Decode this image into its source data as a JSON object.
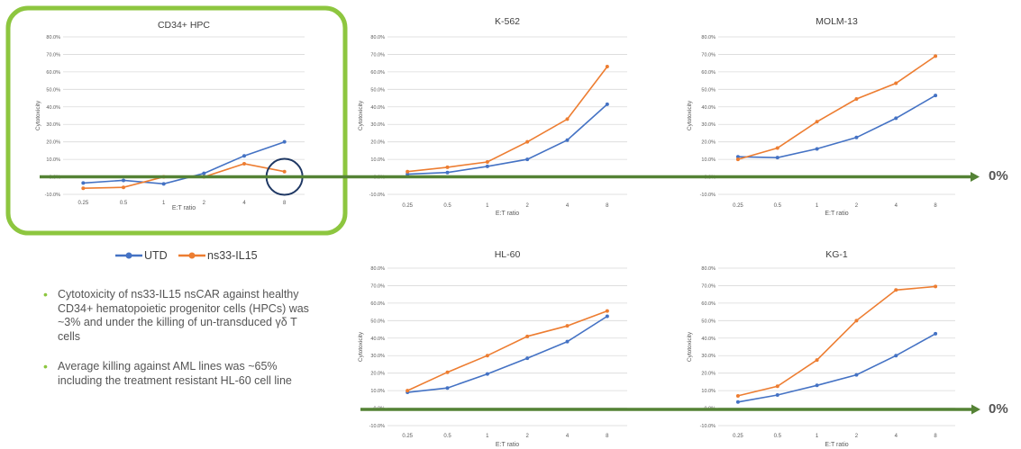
{
  "colors": {
    "utd": "#4472c4",
    "ns33": "#ed7d31",
    "highlight": "#8dc63f",
    "arrow": "#548235",
    "circle": "#1f3864",
    "grid": "#d9d9d9",
    "text": "#595959"
  },
  "legend": {
    "utd": "UTD",
    "ns33": "ns33-IL15"
  },
  "bullets": [
    "Cytotoxicity of ns33-IL15 nsCAR against healthy CD34+ hematopoietic progenitor cells (HPCs) was ~3% and under the killing of un-transduced γδ T cells",
    "Average killing against AML lines was ~65% including the treatment resistant HL-60 cell line"
  ],
  "zero_labels": [
    "0%",
    "0%"
  ],
  "chart_data": [
    {
      "type": "line",
      "title": "CD34+ HPC",
      "xlabel": "E:T ratio",
      "ylabel": "Cytotoxicity",
      "categories": [
        "0.25",
        "0.5",
        "1",
        "2",
        "4",
        "8"
      ],
      "ylim": [
        -10,
        80
      ],
      "yticks": [
        "80.0%",
        "70.0%",
        "60.0%",
        "50.0%",
        "40.0%",
        "30.0%",
        "20.0%",
        "10.0%",
        "0.0%",
        "-10.0%"
      ],
      "series": [
        {
          "name": "UTD",
          "values": [
            -3.5,
            -2,
            -4,
            2,
            12,
            20
          ]
        },
        {
          "name": "ns33-IL15",
          "values": [
            -6.5,
            -6,
            0,
            0,
            7.5,
            3
          ]
        }
      ]
    },
    {
      "type": "line",
      "title": "K-562",
      "xlabel": "E:T ratio",
      "ylabel": "Cytotoxicity",
      "categories": [
        "0.25",
        "0.5",
        "1",
        "2",
        "4",
        "8"
      ],
      "ylim": [
        -10,
        80
      ],
      "yticks": [
        "80.0%",
        "70.0%",
        "60.0%",
        "50.0%",
        "40.0%",
        "30.0%",
        "20.0%",
        "10.0%",
        "0.0%",
        "-10.0%"
      ],
      "series": [
        {
          "name": "UTD",
          "values": [
            1.5,
            2.5,
            6,
            10,
            21,
            41.5
          ]
        },
        {
          "name": "ns33-IL15",
          "values": [
            3,
            5.5,
            8.5,
            20,
            33,
            63
          ]
        }
      ]
    },
    {
      "type": "line",
      "title": "MOLM-13",
      "xlabel": "E:T ratio",
      "ylabel": "Cytotoxicity",
      "categories": [
        "0.25",
        "0.5",
        "1",
        "2",
        "4",
        "8"
      ],
      "ylim": [
        -10,
        80
      ],
      "yticks": [
        "80.0%",
        "70.0%",
        "60.0%",
        "50.0%",
        "40.0%",
        "30.0%",
        "20.0%",
        "10.0%",
        "0.0%",
        "-10.0%"
      ],
      "series": [
        {
          "name": "UTD",
          "values": [
            11.5,
            11,
            16,
            22.5,
            33.5,
            46.5
          ]
        },
        {
          "name": "ns33-IL15",
          "values": [
            10,
            16.5,
            31.5,
            44.5,
            53.5,
            69
          ]
        }
      ]
    },
    {
      "type": "line",
      "title": "HL-60",
      "xlabel": "E:T ratio",
      "ylabel": "Cytotoxicity",
      "categories": [
        "0.25",
        "0.5",
        "1",
        "2",
        "4",
        "8"
      ],
      "ylim": [
        -10,
        80
      ],
      "yticks": [
        "80.0%",
        "70.0%",
        "60.0%",
        "50.0%",
        "40.0%",
        "30.0%",
        "20.0%",
        "10.0%",
        "0.0%",
        "-10.0%"
      ],
      "series": [
        {
          "name": "UTD",
          "values": [
            9,
            11.5,
            19.5,
            28.5,
            38,
            52.5
          ]
        },
        {
          "name": "ns33-IL15",
          "values": [
            10,
            20.5,
            30,
            41,
            47,
            55.5
          ]
        }
      ]
    },
    {
      "type": "line",
      "title": "KG-1",
      "xlabel": "E:T ratio",
      "ylabel": "Cytotoxicity",
      "categories": [
        "0.25",
        "0.5",
        "1",
        "2",
        "4",
        "8"
      ],
      "ylim": [
        -10,
        80
      ],
      "yticks": [
        "80.0%",
        "70.0%",
        "60.0%",
        "50.0%",
        "40.0%",
        "30.0%",
        "20.0%",
        "10.0%",
        "0.0%",
        "-10.0%"
      ],
      "series": [
        {
          "name": "UTD",
          "values": [
            3.5,
            7.5,
            13,
            19,
            30,
            42.5
          ]
        },
        {
          "name": "ns33-IL15",
          "values": [
            7,
            12.5,
            27.5,
            50,
            67.5,
            69.5
          ]
        }
      ]
    }
  ]
}
